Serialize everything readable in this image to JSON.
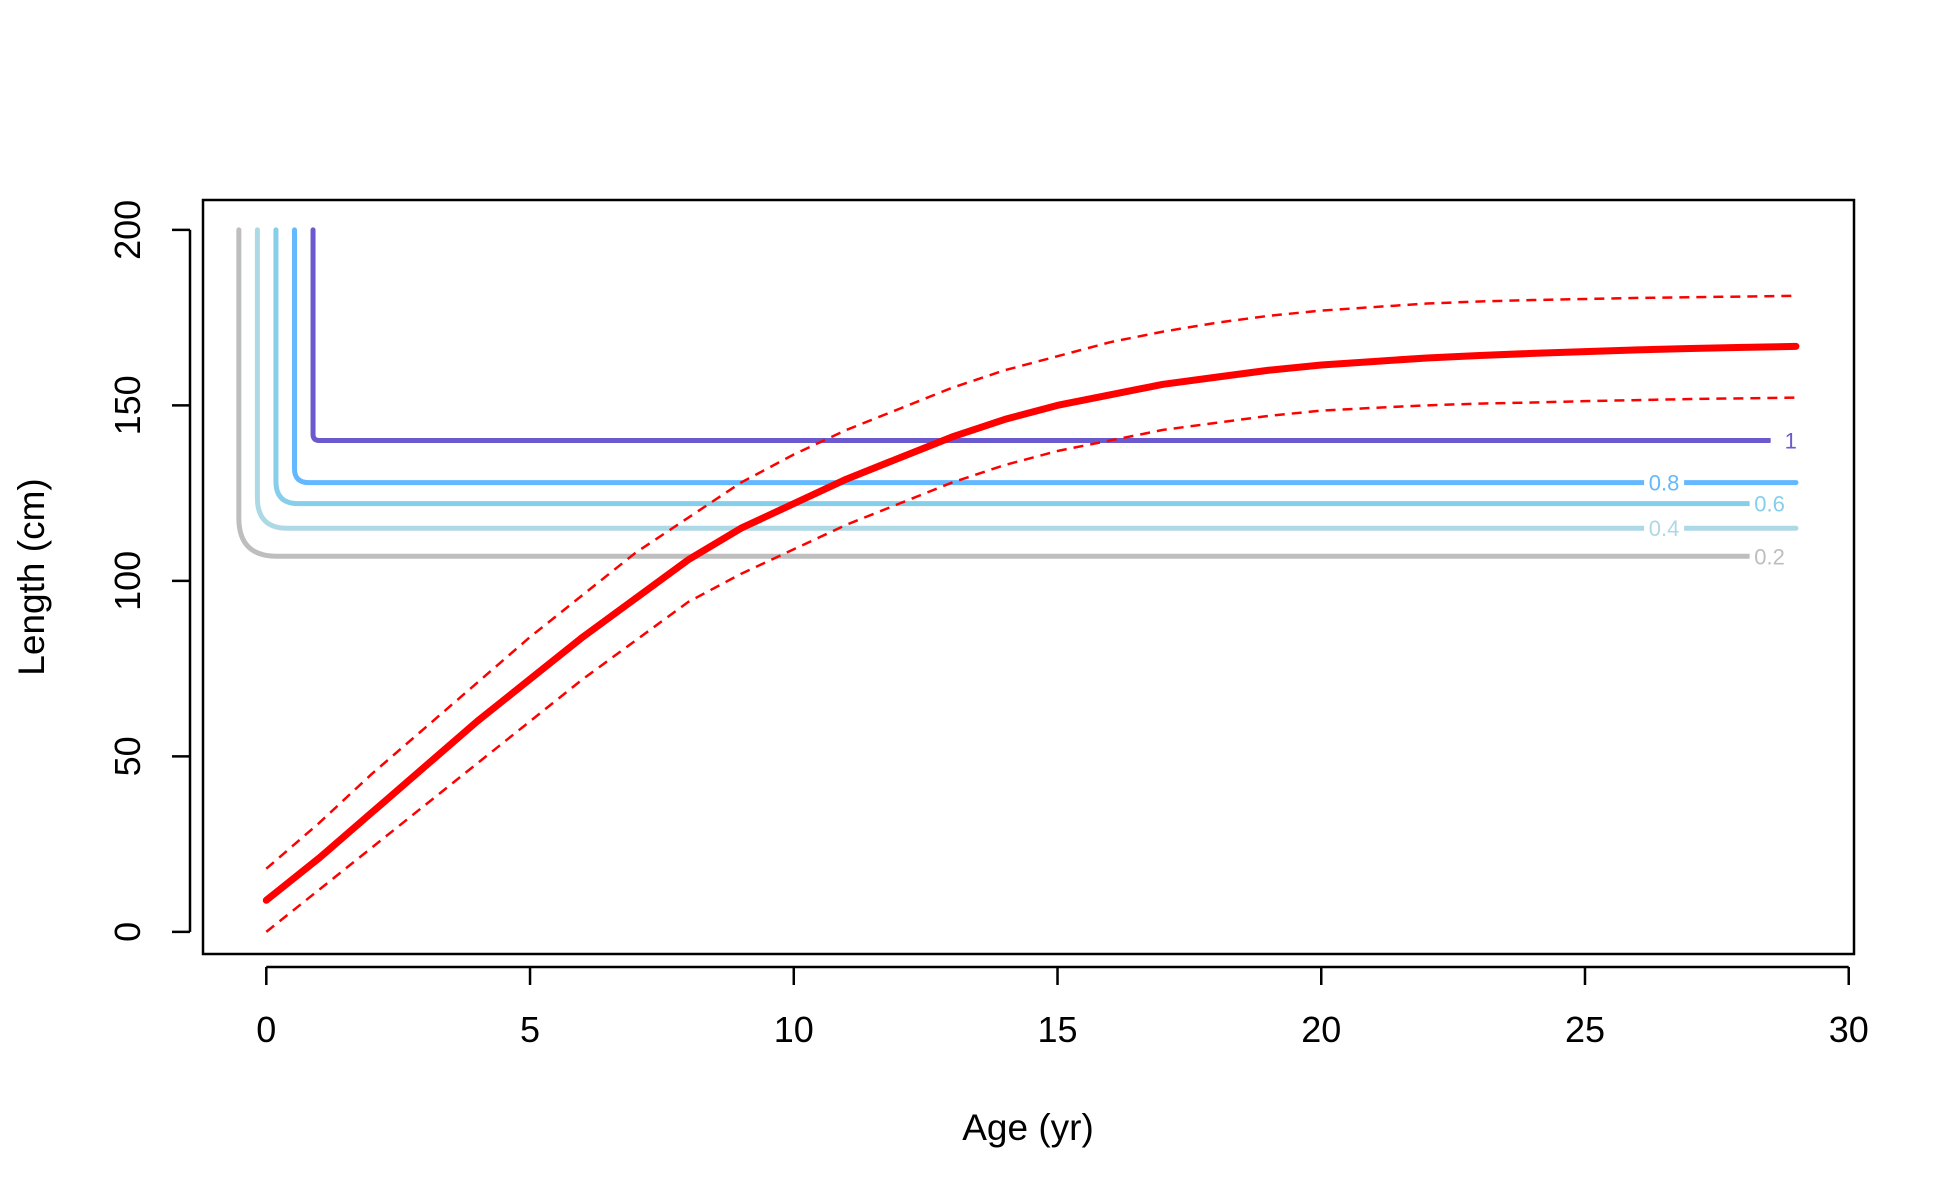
{
  "chart_data": {
    "type": "line",
    "title": "",
    "xlabel": "Age (yr)",
    "ylabel": "Length (cm)",
    "xlim": [
      -1.2,
      30.1
    ],
    "ylim": [
      -6.3,
      208.5
    ],
    "xticks": [
      0,
      5,
      10,
      15,
      20,
      25,
      30
    ],
    "yticks": [
      0,
      50,
      100,
      150,
      200
    ],
    "grid": false,
    "growth_curve": {
      "color": "#ff0000",
      "x": [
        0,
        1,
        2,
        3,
        4,
        5,
        6,
        7,
        8,
        9,
        10,
        11,
        12,
        13,
        14,
        15,
        16,
        17,
        18,
        19,
        20,
        21,
        22,
        23,
        24,
        25,
        26,
        27,
        28,
        29
      ],
      "y": [
        9,
        21,
        34,
        47,
        60,
        72,
        84,
        95,
        106,
        115,
        122,
        129,
        135,
        141,
        146,
        150,
        153,
        156,
        158,
        160,
        161.5,
        162.5,
        163.5,
        164.2,
        164.8,
        165.3,
        165.8,
        166.2,
        166.5,
        166.8
      ]
    },
    "upper_interval": {
      "color": "#ff0000",
      "x": [
        0,
        1,
        2,
        3,
        4,
        5,
        6,
        7,
        8,
        9,
        10,
        11,
        12,
        13,
        14,
        15,
        16,
        17,
        18,
        19,
        20,
        21,
        22,
        23,
        24,
        25,
        26,
        27,
        28,
        29
      ],
      "y": [
        18,
        31,
        45,
        58,
        71,
        84,
        96,
        108,
        118,
        128,
        136,
        143,
        149,
        155,
        160,
        164,
        168,
        171,
        173.5,
        175.5,
        177,
        178,
        179,
        179.6,
        180,
        180.3,
        180.6,
        180.8,
        181,
        181.2
      ]
    },
    "lower_interval": {
      "color": "#ff0000",
      "x": [
        0,
        1,
        2,
        3,
        4,
        5,
        6,
        7,
        8,
        9,
        10,
        11,
        12,
        13,
        14,
        15,
        16,
        17,
        18,
        19,
        20,
        21,
        22,
        23,
        24,
        25,
        26,
        27,
        28,
        29
      ],
      "y": [
        0,
        12,
        24,
        36,
        48,
        60,
        72,
        83,
        94,
        102,
        109,
        116,
        122,
        128,
        133,
        137,
        140,
        143,
        145,
        147,
        148.5,
        149.3,
        150,
        150.5,
        150.8,
        151.2,
        151.5,
        151.8,
        152,
        152.2
      ]
    },
    "contours": [
      {
        "label": "1",
        "level": 1,
        "color": "#6a5acd",
        "corner_x": 1.0,
        "length": 140,
        "x_end": 28.5,
        "label_x": 28.9,
        "label_length": 140
      },
      {
        "label": "0.8",
        "level": 0.8,
        "color": "#63b8ff",
        "corner_x": 0.8,
        "length": 128,
        "x_end": 29.0,
        "label_x": 26.5,
        "label_length": 128
      },
      {
        "label": "0.6",
        "level": 0.6,
        "color": "#87ceeb",
        "corner_x": 0.6,
        "length": 122,
        "x_end": 28.2,
        "label_x": 28.5,
        "label_length": 122
      },
      {
        "label": "0.4",
        "level": 0.4,
        "color": "#add8e6",
        "corner_x": 0.4,
        "length": 115,
        "x_end": 29.0,
        "label_x": 26.5,
        "label_length": 115
      },
      {
        "label": "0.2",
        "level": 0.2,
        "color": "#bebebe",
        "corner_x": 0.2,
        "length": 107,
        "x_end": 28.2,
        "label_x": 28.5,
        "label_length": 107
      }
    ],
    "contour_top": 200
  }
}
